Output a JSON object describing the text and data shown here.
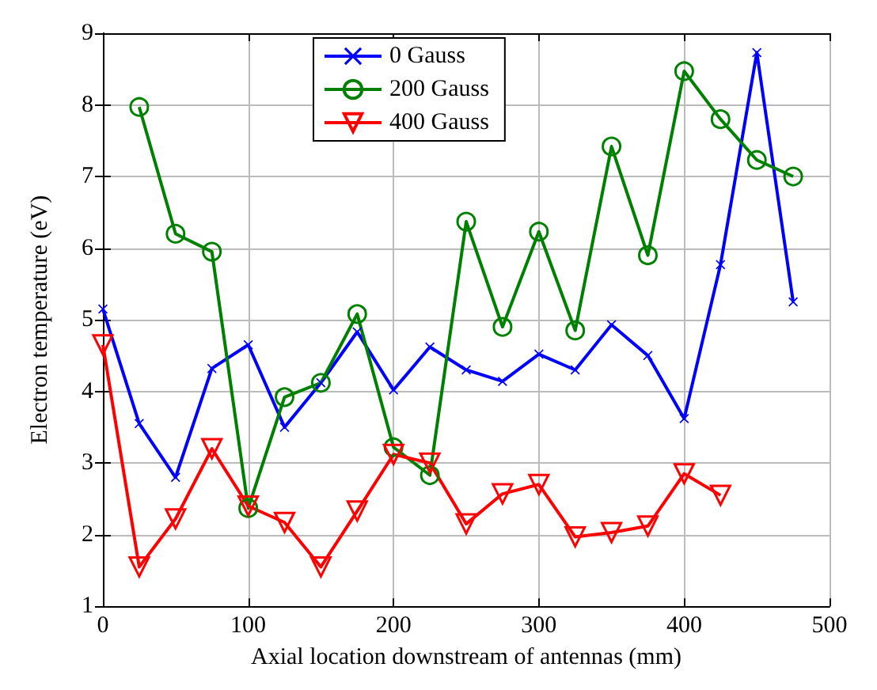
{
  "chart_data": {
    "type": "line",
    "xlabel": "Axial location downstream of antennas (mm)",
    "ylabel": "Electron temperature (eV)",
    "xlim": [
      0,
      500
    ],
    "xticks": [
      0,
      100,
      200,
      300,
      400,
      500
    ],
    "ylim": [
      1,
      9
    ],
    "yticks": [
      1,
      2,
      3,
      4,
      5,
      6,
      7,
      8,
      9
    ],
    "grid": true,
    "legend": "top",
    "series": [
      {
        "name": "0 Gauss",
        "color": "#0000ff",
        "marker": "cross",
        "x": [
          0,
          25,
          50,
          75,
          100,
          125,
          150,
          175,
          200,
          225,
          250,
          275,
          300,
          325,
          350,
          375,
          400,
          425,
          450,
          475
        ],
        "values": [
          5.15,
          3.55,
          2.8,
          4.32,
          4.65,
          3.5,
          4.12,
          4.83,
          4.02,
          4.62,
          4.3,
          4.14,
          4.52,
          4.3,
          4.93,
          4.5,
          3.62,
          5.77,
          8.73,
          5.25
        ]
      },
      {
        "name": "200 Gauss",
        "color": "#008000",
        "marker": "circle",
        "x": [
          25,
          50,
          75,
          100,
          125,
          150,
          175,
          200,
          225,
          250,
          275,
          300,
          325,
          350,
          375,
          400,
          425,
          450,
          475
        ],
        "values": [
          7.97,
          6.2,
          5.95,
          2.37,
          3.92,
          4.12,
          5.08,
          3.22,
          2.83,
          6.37,
          4.9,
          6.23,
          4.85,
          7.42,
          5.9,
          8.47,
          7.8,
          7.23,
          7.0
        ]
      },
      {
        "name": "400 Gauss",
        "color": "#ff0000",
        "marker": "triangle",
        "x": [
          0,
          25,
          50,
          75,
          100,
          125,
          150,
          175,
          200,
          225,
          250,
          275,
          300,
          325,
          350,
          375,
          400,
          425
        ],
        "values": [
          4.65,
          1.55,
          2.22,
          3.2,
          2.4,
          2.17,
          1.55,
          2.33,
          3.12,
          3.0,
          2.15,
          2.57,
          2.7,
          1.97,
          2.03,
          2.12,
          2.85,
          2.55
        ]
      }
    ]
  }
}
